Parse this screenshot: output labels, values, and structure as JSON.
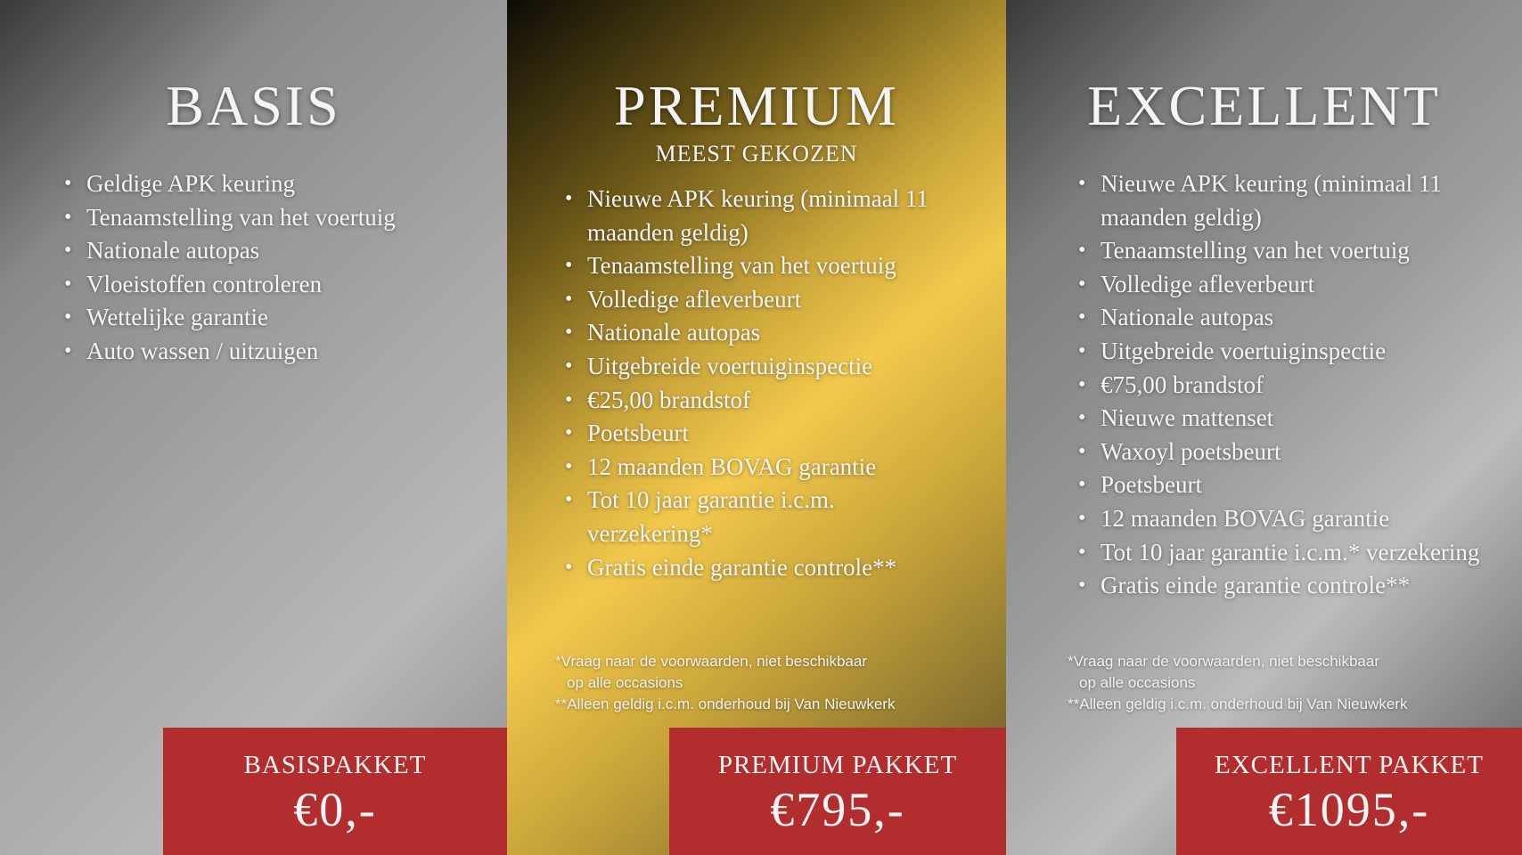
{
  "colors": {
    "red": "#b12d2e",
    "gold": "#f2c94c",
    "grey": "#a8a8a8"
  },
  "packages": [
    {
      "title": "BASIS",
      "features": [
        "Geldige APK keuring",
        "Tenaamstelling van het voertuig",
        "Nationale autopas",
        "Vloeistoffen controleren",
        "Wettelijke garantie",
        "Auto wassen / uitzuigen"
      ],
      "label": "BASISPAKKET",
      "price": "€0,-"
    },
    {
      "title": "PREMIUM",
      "subtitle": "MEEST GEKOZEN",
      "features": [
        "Nieuwe APK keuring (minimaal 11 maanden geldig)",
        "Tenaamstelling van het voertuig",
        "Volledige afleverbeurt",
        "Nationale autopas",
        "Uitgebreide voertuiginspectie",
        "€25,00 brandstof",
        "Poetsbeurt",
        "12 maanden BOVAG garantie",
        "Tot 10 jaar garantie i.c.m. verzekering*",
        "Gratis einde garantie controle**"
      ],
      "notes": [
        "*Vraag naar de voorwaarden, niet beschikbaar",
        "op alle occasions",
        "**Alleen geldig i.c.m. onderhoud bij Van Nieuwkerk"
      ],
      "label": "PREMIUM PAKKET",
      "price": "€795,-"
    },
    {
      "title": "EXCELLENT",
      "features": [
        "Nieuwe APK keuring (minimaal 11 maanden geldig)",
        "Tenaamstelling van het voertuig",
        "Volledige afleverbeurt",
        "Nationale autopas",
        "Uitgebreide voertuiginspectie",
        "€75,00 brandstof",
        "Nieuwe mattenset",
        "Waxoyl poetsbeurt",
        "Poetsbeurt",
        "12 maanden BOVAG garantie",
        "Tot 10 jaar garantie i.c.m.* verzekering",
        "Gratis einde garantie controle**"
      ],
      "notes": [
        "*Vraag naar de voorwaarden, niet beschikbaar",
        "op alle occasions",
        "**Alleen geldig i.c.m. onderhoud bij Van Nieuwkerk"
      ],
      "label": "EXCELLENT PAKKET",
      "price": "€1095,-"
    }
  ]
}
